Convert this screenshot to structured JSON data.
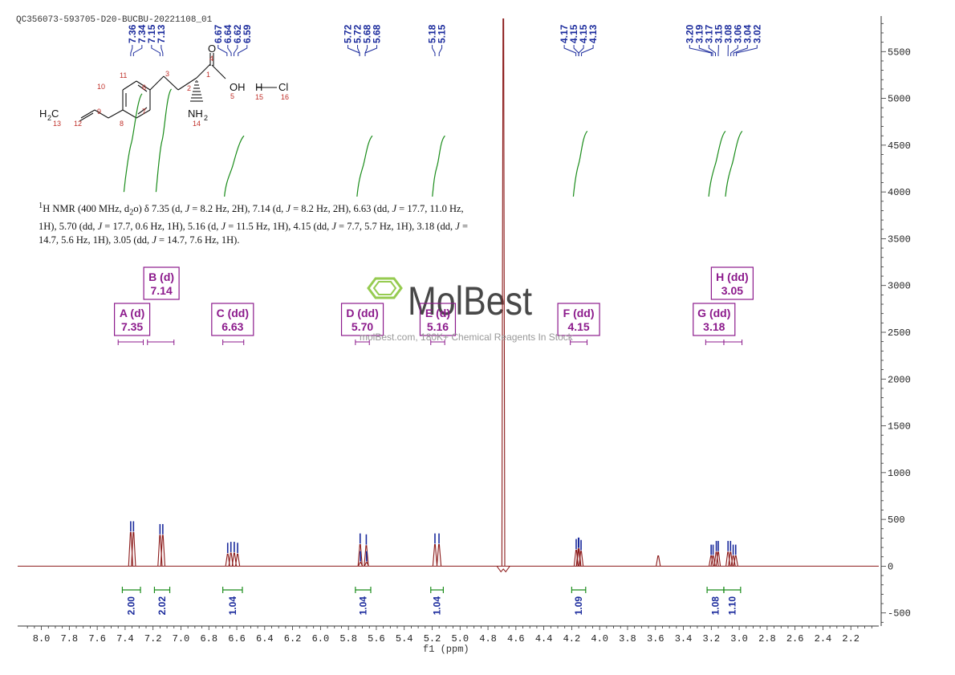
{
  "file_title": "QC356073-593705-D20-BUCBU-20221108_01",
  "nmr_description_html": "<sup>1</sup>H NMR (400 MHz, d<sub>2</sub>o) δ 7.35 (d, <i>J</i> = 8.2 Hz, 2H), 7.14 (d, <i>J</i> = 8.2 Hz, 2H), 6.63 (dd, <i>J</i> = 17.7, 11.0 Hz, 1H), 5.70 (dd, <i>J</i> = 17.7, 0.6 Hz, 1H), 5.16 (d, <i>J</i> = 11.5 Hz, 1H), 4.15 (dd, <i>J</i> = 7.7, 5.7 Hz, 1H), 3.18 (dd, <i>J</i> = 14.7, 5.6 Hz, 1H), 3.05 (dd, <i>J</i> = 14.7, 7.6 Hz, 1H).",
  "watermark": {
    "brand": "MolBest",
    "tagline": "molBest.com, 180K+ Chemical Reagents In Stock"
  },
  "structure": {
    "atoms": {
      "c1": "1",
      "c2": "2",
      "c3": "3",
      "o4": "4",
      "o5": "5",
      "c6": "6",
      "c7": "7",
      "c8": "8",
      "c9": "9",
      "c10": "10",
      "c11": "11",
      "c12": "12",
      "c13": "13",
      "n14": "14",
      "h15": "15",
      "cl16": "16"
    },
    "labels": {
      "o": "O",
      "oh": "OH",
      "h": "H",
      "cl": "Cl",
      "h2": "H",
      "sub2": "2",
      "c": "C",
      "nh": "NH"
    }
  },
  "colors": {
    "spectrum": "#8b1a1a",
    "integral": "#1a8c1a",
    "peak_label": "#1a2a9c",
    "multiplet": "#8c1a8c",
    "axis": "#333333"
  },
  "chart_data": {
    "type": "line",
    "xlabel": "f1 (ppm)",
    "x_ticks": [
      "8.0",
      "7.8",
      "7.6",
      "7.4",
      "7.2",
      "7.0",
      "6.8",
      "6.6",
      "6.4",
      "6.2",
      "6.0",
      "5.8",
      "5.6",
      "5.4",
      "5.2",
      "5.0",
      "4.8",
      "4.6",
      "4.4",
      "4.2",
      "4.0",
      "3.8",
      "3.6",
      "3.4",
      "3.2",
      "3.0",
      "2.8",
      "2.6",
      "2.4",
      "2.2"
    ],
    "x_tick_values": [
      8.0,
      7.8,
      7.6,
      7.4,
      7.2,
      7.0,
      6.8,
      6.6,
      6.4,
      6.2,
      6.0,
      5.8,
      5.6,
      5.4,
      5.2,
      5.0,
      4.8,
      4.6,
      4.4,
      4.2,
      4.0,
      3.8,
      3.6,
      3.4,
      3.2,
      3.0,
      2.8,
      2.6,
      2.4,
      2.2
    ],
    "xlim": [
      8.17,
      2.0
    ],
    "y_ticks": [
      "5500",
      "5000",
      "4500",
      "4000",
      "3500",
      "3000",
      "2500",
      "2000",
      "1500",
      "1000",
      "500",
      "0",
      "-500"
    ],
    "y_tick_values": [
      5500,
      5000,
      4500,
      4000,
      3500,
      3000,
      2500,
      2000,
      1500,
      1000,
      500,
      0,
      -500
    ],
    "ylim": [
      -640,
      5880
    ],
    "peak_labels": [
      {
        "label": "7.36",
        "x": 7.36
      },
      {
        "label": "7.34",
        "x": 7.34
      },
      {
        "label": "7.15",
        "x": 7.15
      },
      {
        "label": "7.13",
        "x": 7.13
      },
      {
        "label": "6.67",
        "x": 6.67
      },
      {
        "label": "6.64",
        "x": 6.64
      },
      {
        "label": "6.62",
        "x": 6.62
      },
      {
        "label": "6.59",
        "x": 6.59
      },
      {
        "label": "5.72",
        "x": 5.72
      },
      {
        "label": "5.72",
        "x": 5.72
      },
      {
        "label": "5.68",
        "x": 5.68
      },
      {
        "label": "5.68",
        "x": 5.68
      },
      {
        "label": "5.18",
        "x": 5.18
      },
      {
        "label": "5.15",
        "x": 5.15
      },
      {
        "label": "4.17",
        "x": 4.17
      },
      {
        "label": "4.15",
        "x": 4.15
      },
      {
        "label": "4.15",
        "x": 4.15
      },
      {
        "label": "4.13",
        "x": 4.13
      },
      {
        "label": "3.20",
        "x": 3.2
      },
      {
        "label": "3.19",
        "x": 3.19
      },
      {
        "label": "3.17",
        "x": 3.17
      },
      {
        "label": "3.15",
        "x": 3.15
      },
      {
        "label": "3.08",
        "x": 3.08
      },
      {
        "label": "3.06",
        "x": 3.06
      },
      {
        "label": "3.04",
        "x": 3.04
      },
      {
        "label": "3.02",
        "x": 3.02
      }
    ],
    "peaks": [
      {
        "x": 7.36,
        "y": 360
      },
      {
        "x": 7.34,
        "y": 360
      },
      {
        "x": 7.15,
        "y": 330
      },
      {
        "x": 7.13,
        "y": 330
      },
      {
        "x": 6.665,
        "y": 130
      },
      {
        "x": 6.642,
        "y": 140
      },
      {
        "x": 6.618,
        "y": 140
      },
      {
        "x": 6.594,
        "y": 130
      },
      {
        "x": 5.716,
        "y": 230
      },
      {
        "x": 5.714,
        "y": 40
      },
      {
        "x": 5.672,
        "y": 220
      },
      {
        "x": 5.67,
        "y": 40
      },
      {
        "x": 5.18,
        "y": 230
      },
      {
        "x": 5.151,
        "y": 230
      },
      {
        "x": 4.168,
        "y": 170
      },
      {
        "x": 4.152,
        "y": 185
      },
      {
        "x": 4.149,
        "y": 185
      },
      {
        "x": 4.133,
        "y": 160
      },
      {
        "x": 3.201,
        "y": 110
      },
      {
        "x": 3.187,
        "y": 110
      },
      {
        "x": 3.164,
        "y": 150
      },
      {
        "x": 3.15,
        "y": 150
      },
      {
        "x": 3.08,
        "y": 150
      },
      {
        "x": 3.062,
        "y": 150
      },
      {
        "x": 3.043,
        "y": 110
      },
      {
        "x": 3.025,
        "y": 110
      },
      {
        "x": 3.58,
        "y": 110
      },
      {
        "x": 4.69,
        "y": 5850
      }
    ],
    "integrals": [
      {
        "from": 7.42,
        "to": 7.29,
        "value": "2.00",
        "curve_bottom": 4000,
        "curve_top": 5050
      },
      {
        "from": 7.19,
        "to": 7.08,
        "value": "2.02",
        "curve_bottom": 4000,
        "curve_top": 5100
      },
      {
        "from": 6.7,
        "to": 6.56,
        "value": "1.04",
        "curve_bottom": 3950,
        "curve_top": 4600
      },
      {
        "from": 5.75,
        "to": 5.64,
        "value": "1.04",
        "curve_bottom": 3950,
        "curve_top": 4600
      },
      {
        "from": 5.21,
        "to": 5.12,
        "value": "1.04",
        "curve_bottom": 3950,
        "curve_top": 4600
      },
      {
        "from": 4.2,
        "to": 4.1,
        "value": "1.09",
        "curve_bottom": 3950,
        "curve_top": 4650
      },
      {
        "from": 3.23,
        "to": 3.11,
        "value": "1.08",
        "curve_bottom": 3950,
        "curve_top": 4650
      },
      {
        "from": 3.11,
        "to": 2.99,
        "value": "1.10",
        "curve_bottom": 3950,
        "curve_top": 4650
      }
    ],
    "multiplets": [
      {
        "name": "A (d)",
        "value": "7.35",
        "x": 7.35,
        "range": [
          7.45,
          7.27
        ],
        "level": 1
      },
      {
        "name": "B (d)",
        "value": "7.14",
        "x": 7.14,
        "range": [
          7.24,
          7.05
        ],
        "level": 2
      },
      {
        "name": "C (dd)",
        "value": "6.63",
        "x": 6.63,
        "range": [
          6.7,
          6.55
        ],
        "level": 1
      },
      {
        "name": "D (dd)",
        "value": "5.70",
        "x": 5.7,
        "range": [
          5.75,
          5.65
        ],
        "level": 1
      },
      {
        "name": "E (d)",
        "value": "5.16",
        "x": 5.16,
        "range": [
          5.21,
          5.11
        ],
        "level": 1
      },
      {
        "name": "F (dd)",
        "value": "4.15",
        "x": 4.15,
        "range": [
          4.21,
          4.09
        ],
        "level": 1
      },
      {
        "name": "G (dd)",
        "value": "3.18",
        "x": 3.18,
        "range": [
          3.24,
          3.11
        ],
        "level": 1
      },
      {
        "name": "H (dd)",
        "value": "3.05",
        "x": 3.05,
        "range": [
          3.11,
          2.98
        ],
        "level": 2
      }
    ]
  }
}
